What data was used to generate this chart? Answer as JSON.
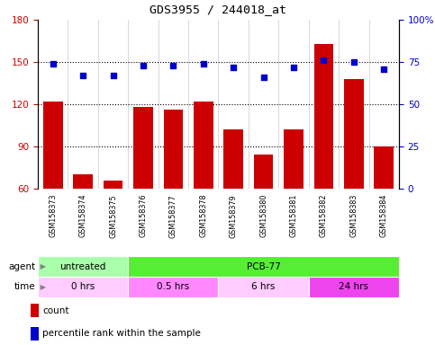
{
  "title": "GDS3955 / 244018_at",
  "samples": [
    "GSM158373",
    "GSM158374",
    "GSM158375",
    "GSM158376",
    "GSM158377",
    "GSM158378",
    "GSM158379",
    "GSM158380",
    "GSM158381",
    "GSM158382",
    "GSM158383",
    "GSM158384"
  ],
  "counts": [
    122,
    70,
    66,
    118,
    116,
    122,
    102,
    84,
    102,
    163,
    138,
    90
  ],
  "percentile_ranks": [
    74,
    67,
    67,
    73,
    73,
    74,
    72,
    66,
    72,
    76,
    75,
    71
  ],
  "ylim_left": [
    60,
    180
  ],
  "ylim_right": [
    0,
    100
  ],
  "yticks_left": [
    60,
    90,
    120,
    150,
    180
  ],
  "yticks_right": [
    0,
    25,
    50,
    75,
    100
  ],
  "bar_color": "#cc0000",
  "dot_color": "#0000cc",
  "agent_groups": [
    {
      "label": "untreated",
      "start": 0,
      "end": 3,
      "color_left": "#ccffcc",
      "color_right": "#66dd66"
    },
    {
      "label": "PCB-77",
      "start": 3,
      "end": 12,
      "color_left": "#66ee44",
      "color_right": "#44cc22"
    }
  ],
  "time_groups": [
    {
      "label": "0 hrs",
      "start": 0,
      "end": 3,
      "color": "#ffccff"
    },
    {
      "label": "0.5 hrs",
      "start": 3,
      "end": 6,
      "color": "#ff99ff"
    },
    {
      "label": "6 hrs",
      "start": 6,
      "end": 9,
      "color": "#ffccff"
    },
    {
      "label": "24 hrs",
      "start": 9,
      "end": 12,
      "color": "#ee55ee"
    }
  ],
  "sample_bg_color": "#cccccc",
  "sample_border_color": "#ffffff",
  "agent_untreated_color": "#aaffaa",
  "agent_pcb_color": "#55ee33",
  "time_color_0": "#ffccff",
  "time_color_05": "#ff88ff",
  "time_color_6": "#ffccff",
  "time_color_24": "#ee44ee",
  "legend_count_color": "#cc0000",
  "legend_pct_color": "#0000cc",
  "fig_w": 483,
  "fig_h": 384,
  "title_fontsize": 9.5,
  "axis_fontsize": 7.5,
  "sample_fontsize": 5.8,
  "label_fontsize": 7.5
}
